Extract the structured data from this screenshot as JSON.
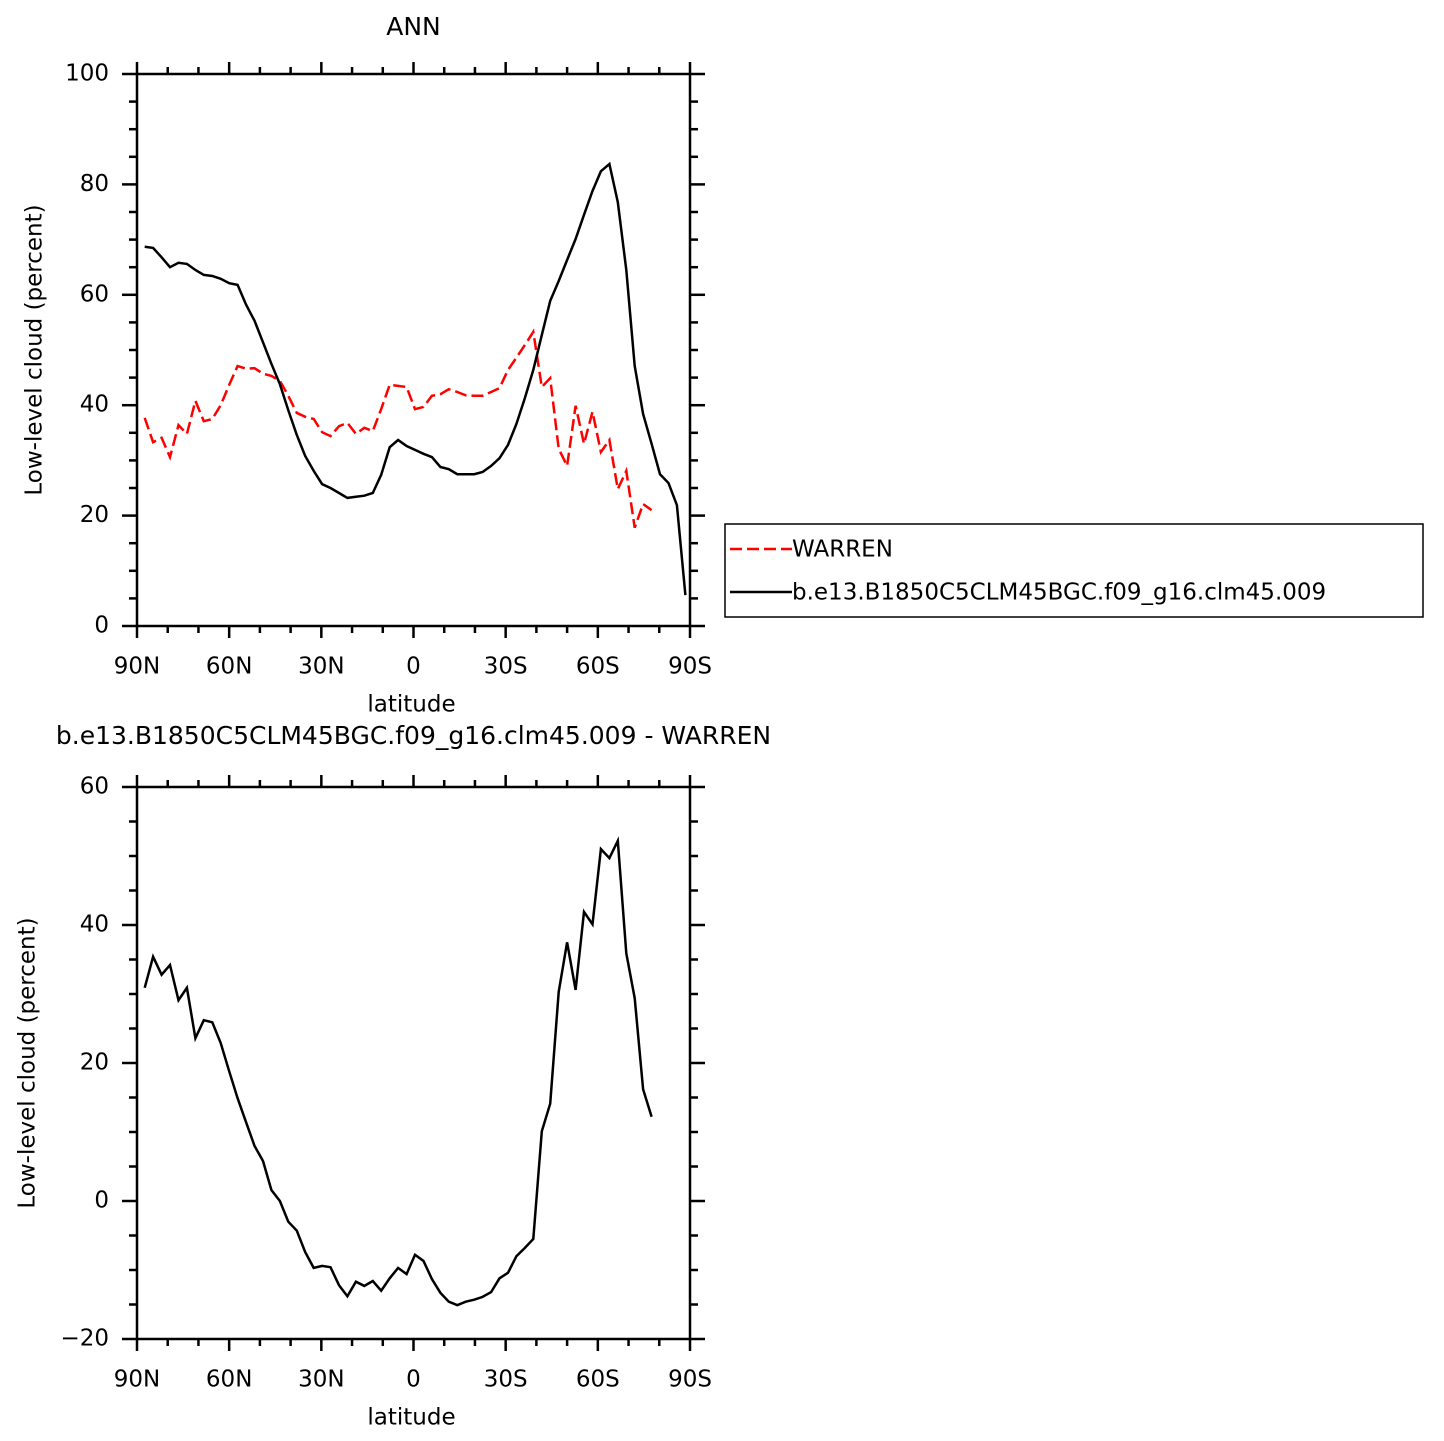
{
  "chart_data": [
    {
      "type": "line",
      "title": "ANN",
      "x_label": "latitude",
      "y_label": "Low-level cloud (percent)",
      "x": [
        87.5,
        84.75,
        82,
        79.25,
        76.5,
        73.75,
        71,
        68.25,
        65.5,
        62.75,
        60,
        57.25,
        54.5,
        51.75,
        49,
        46.25,
        43.5,
        40.75,
        38,
        35.25,
        32.5,
        29.75,
        27,
        24.25,
        21.5,
        18.75,
        16,
        13.25,
        10.5,
        7.75,
        5,
        2.25,
        -0.5,
        -3.25,
        -6,
        -8.75,
        -11.5,
        -14.25,
        -17,
        -19.75,
        -22.5,
        -25.25,
        -28,
        -30.75,
        -33.5,
        -36.25,
        -39,
        -41.75,
        -44.5,
        -47.25,
        -50,
        -52.75,
        -55.5,
        -58.25,
        -61,
        -63.75,
        -66.5,
        -69.25,
        -72,
        -74.75,
        -77.5,
        -80.25,
        -83,
        -85.75,
        -88.5
      ],
      "xlim": [
        90,
        -90
      ],
      "xticks": [
        {
          "value": 90,
          "label": "90N"
        },
        {
          "value": 60,
          "label": "60N"
        },
        {
          "value": 30,
          "label": "30N"
        },
        0,
        {
          "value": -30,
          "label": "30S"
        },
        {
          "value": -60,
          "label": "60S"
        },
        {
          "value": -90,
          "label": "90S"
        }
      ],
      "ylim": [
        0,
        100
      ],
      "yticks": [
        0,
        20,
        40,
        60,
        80,
        100
      ],
      "legend": "right",
      "series": [
        {
          "name": "WARREN",
          "color": "#ff0000",
          "linestyle": "dashed",
          "values": [
            37.7,
            33.3,
            34.1,
            30.6,
            36.4,
            34.8,
            40.8,
            37.1,
            37.5,
            40.0,
            43.7,
            47.1,
            46.6,
            46.7,
            45.7,
            45.3,
            44.4,
            41.7,
            38.6,
            37.9,
            37.5,
            35.1,
            34.4,
            36.2,
            36.8,
            34.8,
            35.9,
            35.3,
            39.3,
            43.7,
            43.5,
            43.3,
            39.3,
            39.7,
            41.7,
            42.0,
            42.9,
            42.4,
            41.8,
            41.7,
            41.7,
            42.4,
            43.1,
            46.4,
            48.6,
            50.9,
            53.3,
            43.3,
            44.9,
            32.1,
            29.0,
            39.9,
            33.0,
            38.8,
            31.5,
            33.7,
            24.8,
            28.1,
            17.8,
            22.1,
            21.0,
            null,
            null,
            null,
            null
          ]
        },
        {
          "name": "b.e13.B1850C5CLM45BGC.f09_g16.clm45.009",
          "color": "#000000",
          "linestyle": "solid",
          "values": [
            68.7,
            68.5,
            66.8,
            65.0,
            65.8,
            65.6,
            64.5,
            63.6,
            63.4,
            62.9,
            62.1,
            61.8,
            58.2,
            55.3,
            51.4,
            47.5,
            43.8,
            39.1,
            34.6,
            30.8,
            28.1,
            25.7,
            25.0,
            24.1,
            23.2,
            23.4,
            23.6,
            24.1,
            27.4,
            32.4,
            33.7,
            32.6,
            31.9,
            31.2,
            30.6,
            28.8,
            28.4,
            27.5,
            27.5,
            27.5,
            27.9,
            29.0,
            30.4,
            32.8,
            36.6,
            41.3,
            46.4,
            52.7,
            58.9,
            62.5,
            66.3,
            70.1,
            74.5,
            78.8,
            82.4,
            83.7,
            76.8,
            64.5,
            47.1,
            38.4,
            33.0,
            27.5,
            25.9,
            21.9,
            5.6
          ]
        }
      ]
    },
    {
      "type": "line",
      "title": "b.e13.B1850C5CLM45BGC.f09_g16.clm45.009 - WARREN",
      "x_label": "latitude",
      "y_label": "Low-level cloud (percent)",
      "x": [
        87.5,
        84.75,
        82,
        79.25,
        76.5,
        73.75,
        71,
        68.25,
        65.5,
        62.75,
        60,
        57.25,
        54.5,
        51.75,
        49,
        46.25,
        43.5,
        40.75,
        38,
        35.25,
        32.5,
        29.75,
        27,
        24.25,
        21.5,
        18.75,
        16,
        13.25,
        10.5,
        7.75,
        5,
        2.25,
        -0.5,
        -3.25,
        -6,
        -8.75,
        -11.5,
        -14.25,
        -17,
        -19.75,
        -22.5,
        -25.25,
        -28,
        -30.75,
        -33.5,
        -36.25,
        -39,
        -41.75,
        -44.5,
        -47.25,
        -50,
        -52.75,
        -55.5,
        -58.25,
        -61,
        -63.75,
        -66.5,
        -69.25,
        -72,
        -74.75,
        -77.5,
        -80.25,
        -83,
        -85.75,
        -88.5
      ],
      "xlim": [
        90,
        -90
      ],
      "xticks": [
        {
          "value": 90,
          "label": "90N"
        },
        {
          "value": 60,
          "label": "60N"
        },
        {
          "value": 30,
          "label": "30N"
        },
        0,
        {
          "value": -30,
          "label": "30S"
        },
        {
          "value": -60,
          "label": "60S"
        },
        {
          "value": -90,
          "label": "90S"
        }
      ],
      "ylim": [
        -20,
        60
      ],
      "yticks": [
        {
          "value": -20,
          "label": "−20"
        },
        0,
        20,
        40,
        60
      ],
      "series": [
        {
          "color": "#000000",
          "linestyle": "solid",
          "values": [
            30.9,
            35.4,
            32.8,
            34.2,
            29.1,
            30.9,
            23.6,
            26.2,
            25.9,
            22.9,
            18.8,
            14.9,
            11.4,
            8.0,
            5.8,
            1.6,
            0,
            -3.0,
            -4.3,
            -7.4,
            -9.7,
            -9.4,
            -9.6,
            -12.2,
            -13.8,
            -11.7,
            -12.3,
            -11.6,
            -13.0,
            -11.2,
            -9.7,
            -10.6,
            -7.8,
            -8.7,
            -11.3,
            -13.3,
            -14.6,
            -15.1,
            -14.6,
            -14.3,
            -13.9,
            -13.2,
            -11.2,
            -10.4,
            -8.0,
            -6.8,
            -5.5,
            10.1,
            14.1,
            30.3,
            37.5,
            30.6,
            41.9,
            40.1,
            51.0,
            49.7,
            52.2,
            35.9,
            29.4,
            16.2,
            12.2,
            null,
            null,
            null,
            null
          ]
        }
      ]
    }
  ]
}
